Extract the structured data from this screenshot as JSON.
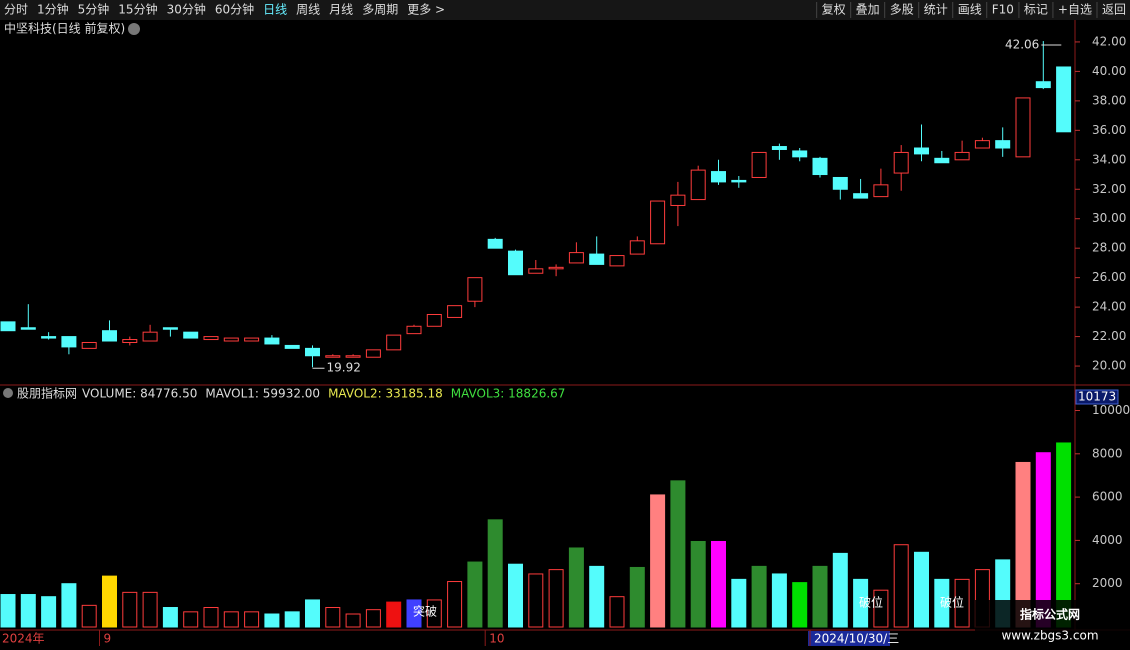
{
  "toolbar": {
    "left": [
      "分时",
      "1分钟",
      "5分钟",
      "15分钟",
      "30分钟",
      "60分钟",
      "日线",
      "周线",
      "月线",
      "多周期",
      "更多 >"
    ],
    "right": [
      "复权",
      "叠加",
      "多股",
      "统计",
      "画线",
      "F10",
      "标记",
      "+自选",
      "返回"
    ]
  },
  "chart_data": [
    {
      "type": "candlestick",
      "title": "中坚科技(日线 前复权)",
      "categories": [
        "2024年",
        null,
        null,
        null,
        null,
        "9",
        null,
        null,
        null,
        null,
        null,
        null,
        null,
        null,
        null,
        null,
        null,
        null,
        null,
        null,
        null,
        null,
        null,
        null,
        "10",
        null,
        null,
        null,
        null,
        null,
        null,
        null,
        null,
        null,
        null,
        null,
        null,
        null,
        null,
        null,
        "2024/10/30/三",
        null,
        null,
        null,
        null,
        null,
        null,
        null,
        null,
        null,
        null,
        null,
        null
      ],
      "open": [
        23.0,
        22.6,
        22.0,
        22.0,
        21.2,
        22.4,
        21.6,
        21.7,
        22.6,
        22.3,
        21.8,
        21.7,
        21.7,
        21.9,
        21.4,
        21.2,
        20.6,
        20.6,
        20.6,
        21.1,
        22.2,
        22.7,
        23.3,
        24.4,
        28.6,
        27.8,
        26.3,
        26.6,
        27.0,
        27.6,
        26.8,
        27.6,
        28.3,
        30.9,
        31.3,
        33.2,
        32.6,
        32.8,
        34.9,
        34.6,
        34.1,
        32.8,
        31.7,
        31.5,
        33.1,
        34.8,
        34.1,
        34.0,
        34.8,
        35.3,
        34.2,
        39.3,
        40.3
      ],
      "high": [
        23.0,
        24.2,
        22.3,
        22.0,
        21.6,
        23.1,
        22.0,
        22.8,
        22.6,
        22.3,
        22.0,
        21.9,
        21.9,
        22.1,
        21.4,
        21.4,
        20.8,
        20.8,
        21.1,
        22.1,
        22.8,
        23.5,
        24.1,
        26.0,
        28.7,
        27.9,
        27.2,
        26.9,
        28.4,
        28.8,
        27.5,
        28.8,
        31.2,
        32.5,
        33.6,
        34.0,
        32.9,
        34.5,
        35.1,
        34.8,
        34.2,
        32.8,
        32.7,
        33.4,
        35.0,
        36.4,
        34.6,
        35.3,
        35.5,
        36.2,
        38.2,
        42.06,
        40.3
      ],
      "low": [
        22.4,
        22.5,
        21.8,
        20.8,
        21.2,
        21.7,
        21.4,
        21.7,
        22.0,
        21.9,
        21.8,
        21.7,
        21.7,
        21.5,
        21.2,
        19.92,
        20.6,
        20.6,
        20.6,
        21.1,
        22.2,
        22.7,
        23.3,
        24.0,
        28.0,
        26.2,
        26.3,
        26.1,
        27.0,
        26.9,
        26.8,
        27.6,
        28.3,
        29.5,
        31.3,
        32.3,
        32.1,
        32.8,
        34.0,
        33.9,
        32.8,
        31.3,
        31.4,
        31.5,
        31.9,
        33.9,
        33.8,
        34.0,
        34.8,
        34.2,
        34.2,
        38.8,
        35.9
      ],
      "close": [
        22.4,
        22.5,
        21.9,
        21.3,
        21.6,
        21.7,
        21.8,
        22.3,
        22.5,
        21.9,
        22.0,
        21.9,
        21.9,
        21.5,
        21.2,
        20.7,
        20.7,
        20.7,
        21.1,
        22.1,
        22.7,
        23.5,
        24.1,
        26.0,
        28.0,
        26.2,
        26.6,
        26.7,
        27.7,
        26.9,
        27.5,
        28.5,
        31.2,
        31.6,
        33.3,
        32.5,
        32.5,
        34.5,
        34.7,
        34.2,
        33.0,
        32.0,
        31.4,
        32.3,
        34.5,
        34.4,
        33.8,
        34.5,
        35.3,
        34.8,
        38.2,
        38.9,
        35.9
      ],
      "up_color": "#ff3c3c",
      "down_color": "#54fcfc",
      "ylim": [
        18.85,
        42.81
      ],
      "yticks": [
        {
          "value": 20,
          "label": "20.00"
        },
        {
          "value": 22,
          "label": "22.00"
        },
        {
          "value": 24,
          "label": "24.00"
        },
        {
          "value": 26,
          "label": "26.00"
        },
        {
          "value": 28,
          "label": "28.00"
        },
        {
          "value": 30,
          "label": "30.00"
        },
        {
          "value": 32,
          "label": "32.00"
        },
        {
          "value": 34,
          "label": "34.00"
        },
        {
          "value": 36,
          "label": "36.00"
        },
        {
          "value": 38,
          "label": "38.00"
        },
        {
          "value": 40,
          "label": "40.00"
        },
        {
          "value": 42,
          "label": "42.00"
        }
      ],
      "max_label": 42.06,
      "min_label": 19.92
    },
    {
      "type": "bar",
      "title": "股朋指标网",
      "legend": [
        "VOLUME: 84776.50",
        "MAVOL1: 59932.00",
        "MAVOL2: 33185.18",
        "MAVOL3: 18826.67"
      ],
      "legend_colors": [
        "#dddddd",
        "#dddddd",
        "#e8e850",
        "#40e040"
      ],
      "series": [
        {
          "name": "VOLUME",
          "values": [
            1500,
            1500,
            1400,
            2000,
            1000,
            2350,
            1600,
            1600,
            900,
            700,
            900,
            700,
            700,
            600,
            700,
            1250,
            900,
            600,
            800,
            1150,
            1250,
            1250,
            2100,
            3000,
            4950,
            2900,
            2450,
            2650,
            3650,
            2800,
            1400,
            2750,
            6100,
            6750,
            3950,
            3950,
            2200,
            2800,
            2450,
            2050,
            2800,
            3400,
            2200,
            1700,
            3800,
            3450,
            2200,
            2200,
            2650,
            3100,
            7600,
            8050,
            8500
          ],
          "colors": [
            "#54fcfc",
            "#54fcfc",
            "#54fcfc",
            "#54fcfc",
            "#ff3c3c",
            "#ffd700",
            "#ff3c3c",
            "#ff3c3c",
            "#54fcfc",
            "#ff3c3c",
            "#ff3c3c",
            "#ff3c3c",
            "#ff3c3c",
            "#54fcfc",
            "#54fcfc",
            "#54fcfc",
            "#ff3c3c",
            "#ff3c3c",
            "#ff3c3c",
            "#ee1111",
            "#4040ff",
            "#ff3c3c",
            "#ff3c3c",
            "#2e8b2e",
            "#2e8b2e",
            "#54fcfc",
            "#ff3c3c",
            "#ff3c3c",
            "#2e8b2e",
            "#54fcfc",
            "#ff3c3c",
            "#2e8b2e",
            "#ff8080",
            "#2e8b2e",
            "#2e8b2e",
            "#ff00ff",
            "#54fcfc",
            "#2e8b2e",
            "#54fcfc",
            "#00e000",
            "#2e8b2e",
            "#54fcfc",
            "#54fcfc",
            "#ff3c3c",
            "#ff3c3c",
            "#54fcfc",
            "#54fcfc",
            "#ff3c3c",
            "#ff3c3c",
            "#54fcfc",
            "#ff8080",
            "#ff00ff",
            "#00e000"
          ]
        }
      ],
      "hollow_color": "#ff3c3c",
      "ylim": [
        0,
        10300
      ],
      "yticks": [
        2000,
        4000,
        6000,
        8000,
        10000
      ],
      "axis_top_label": 10173,
      "annotations": [
        "突破",
        "破位",
        "破位"
      ]
    }
  ],
  "watermark": {
    "title": "指标公式网",
    "url": "www.zbgs3.com"
  }
}
